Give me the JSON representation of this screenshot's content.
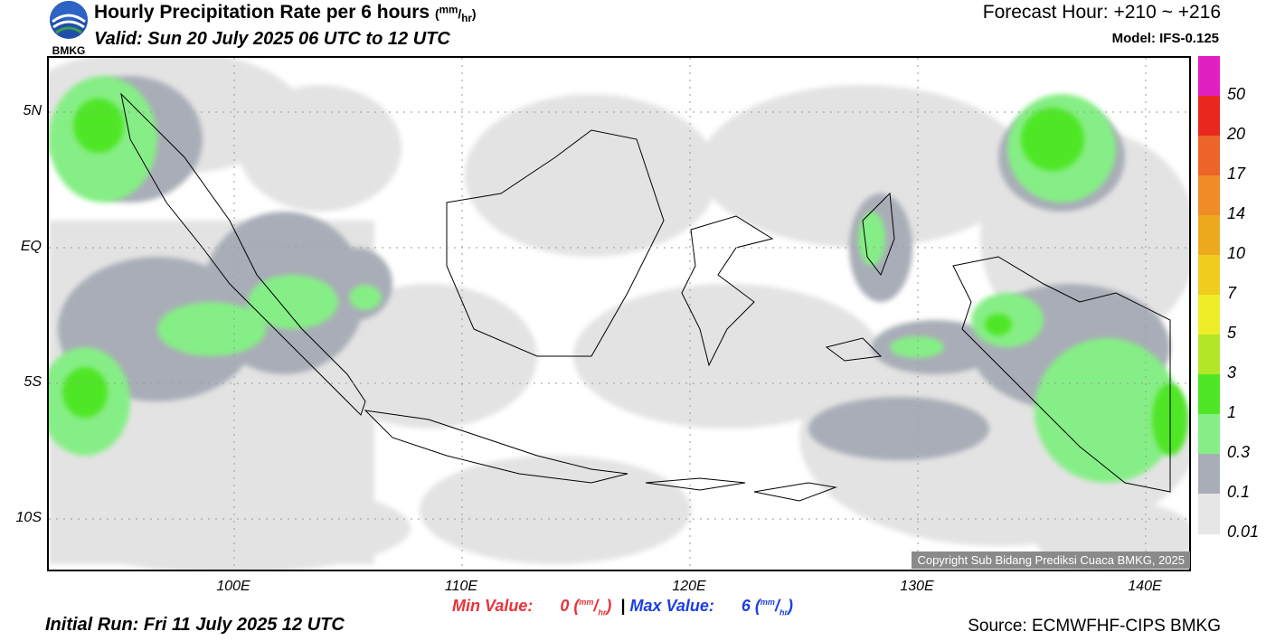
{
  "header": {
    "title": "Hourly Precipitation Rate per 6 hours",
    "title_unit_num": "mm",
    "title_unit_den": "hr",
    "valid": "Valid: Sun 20 July 2025 06 UTC to 12 UTC",
    "forecast_hour": "Forecast Hour: +210 ~ +216",
    "model": "Model: IFS-0.125"
  },
  "logo": {
    "text": "BMKG"
  },
  "map": {
    "lat_labels": [
      "5N",
      "EQ",
      "5S",
      "10S"
    ],
    "lon_labels": [
      "100E",
      "110E",
      "120E",
      "130E",
      "140E"
    ],
    "copyright": "Copyright Sub Bidang Prediksi Cuaca BMKG, 2025"
  },
  "stats": {
    "min_label": "Min Value:",
    "min_value": "0",
    "max_label": "Max Value:",
    "max_value": "6",
    "unit_num": "mm",
    "unit_den": "hr",
    "separator": "|"
  },
  "footer": {
    "initial_run": "Initial Run: Fri 11 July 2025 12 UTC",
    "source": "Source: ECMWFHF-CIPS BMKG"
  },
  "legend": {
    "levels": [
      "50",
      "20",
      "17",
      "14",
      "10",
      "7",
      "5",
      "3",
      "1",
      "0.3",
      "0.1",
      "0.01"
    ],
    "colors": [
      "#e020c0",
      "#e8281e",
      "#ec6428",
      "#f08c28",
      "#eeaa1e",
      "#f0cc1e",
      "#eeee28",
      "#b4e628",
      "#50e628",
      "#86ee86",
      "#a9adb7",
      "#e6e6e6"
    ]
  }
}
